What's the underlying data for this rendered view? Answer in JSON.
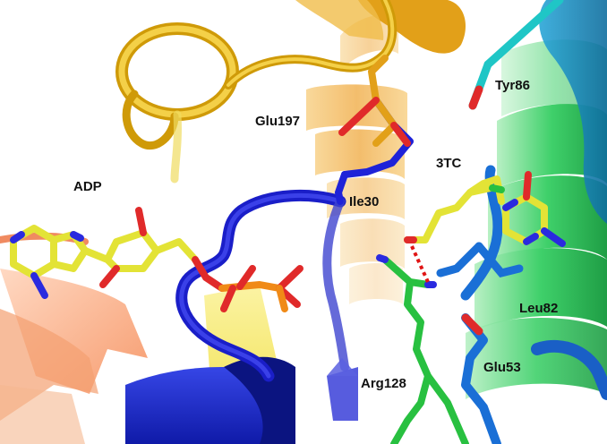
{
  "labels": {
    "adp": "ADP",
    "glu197": "Glu197",
    "tyr86": "Tyr86",
    "tc3": "3TC",
    "ile30": "Ile30",
    "leu82": "Leu82",
    "arg128": "Arg128",
    "glu53": "Glu53"
  },
  "colors": {
    "background": "#ffffff",
    "helix_gold": "#e0a51c",
    "helix_orange": "#f2b04a",
    "helix_yellow": "#f3df3a",
    "loop_blue": "#1b1fd0",
    "helix_blue": "#1f2fd6",
    "cyan": "#1fc6c6",
    "green": "#3ed36b",
    "ligand_carbon": "#e3e336",
    "oxygen": "#e02a2a",
    "nitrogen": "#2a2adf",
    "phosphorus": "#f08a17",
    "hbond": "#e01414"
  }
}
